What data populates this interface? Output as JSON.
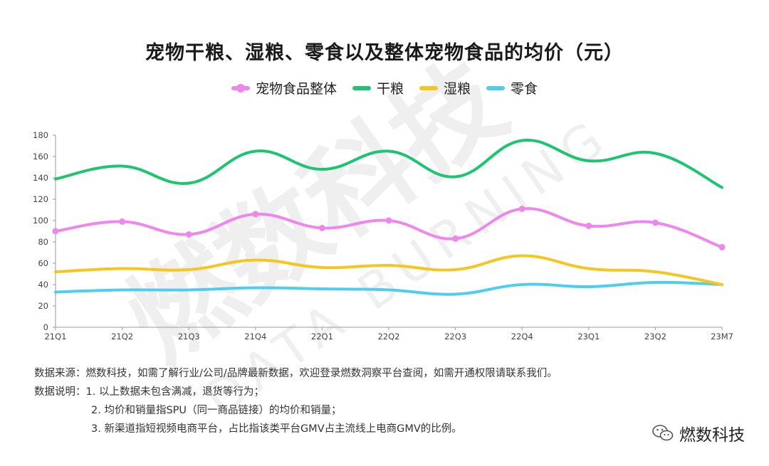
{
  "title": "宠物干粮、湿粮、零食以及整体宠物食品的均价（元）",
  "legend": [
    {
      "label": "宠物食品整体",
      "color": "#ef86ee",
      "marker": "dot"
    },
    {
      "label": "干粮",
      "color": "#1ec46f",
      "marker": "line"
    },
    {
      "label": "湿粮",
      "color": "#f7c51f",
      "marker": "line"
    },
    {
      "label": "零食",
      "color": "#4fcdf0",
      "marker": "line"
    }
  ],
  "chart_data": {
    "type": "line",
    "categories": [
      "21Q1",
      "21Q2",
      "21Q3",
      "21Q4",
      "22Q1",
      "22Q2",
      "22Q3",
      "22Q4",
      "23Q1",
      "23Q2",
      "23M7"
    ],
    "ylim": [
      0,
      180
    ],
    "yticks": [
      0,
      20,
      40,
      60,
      80,
      100,
      120,
      140,
      160,
      180
    ],
    "grid": false,
    "smooth": true,
    "series": [
      {
        "name": "宠物食品整体",
        "color": "#ef86ee",
        "markers": true,
        "values": [
          90,
          99,
          87,
          106,
          93,
          100,
          83,
          111,
          95,
          98,
          75
        ]
      },
      {
        "name": "干粮",
        "color": "#1ec46f",
        "markers": false,
        "values": [
          139,
          151,
          135,
          165,
          148,
          165,
          141,
          175,
          156,
          163,
          131
        ]
      },
      {
        "name": "湿粮",
        "color": "#f7c51f",
        "markers": false,
        "values": [
          52,
          55,
          54,
          63,
          56,
          58,
          54,
          67,
          55,
          52,
          40
        ]
      },
      {
        "name": "零食",
        "color": "#4fcdf0",
        "markers": false,
        "values": [
          33,
          35,
          35,
          37,
          36,
          35,
          31,
          40,
          38,
          42,
          40
        ]
      }
    ]
  },
  "notes": {
    "source": "数据来源：燃数科技，如需了解行业/公司/品牌最新数据，欢迎登录燃数洞察平台查阅，如需开通权限请联系我们。",
    "desc_prefix": "数据说明：",
    "desc_1": "1. 以上数据未包含满减，退货等行为；",
    "desc_2": "2. 均价和销量指SPU（同一商品链接）的均价和销量；",
    "desc_3": "3. 新渠道指短视频电商平台，占比指该类平台GMV占主流线上电商GMV的比例。"
  },
  "brand": {
    "name": "燃数科技",
    "icon": "wechat-icon"
  },
  "watermark": {
    "cn": "燃数科技",
    "en": "DATA BURNING"
  }
}
